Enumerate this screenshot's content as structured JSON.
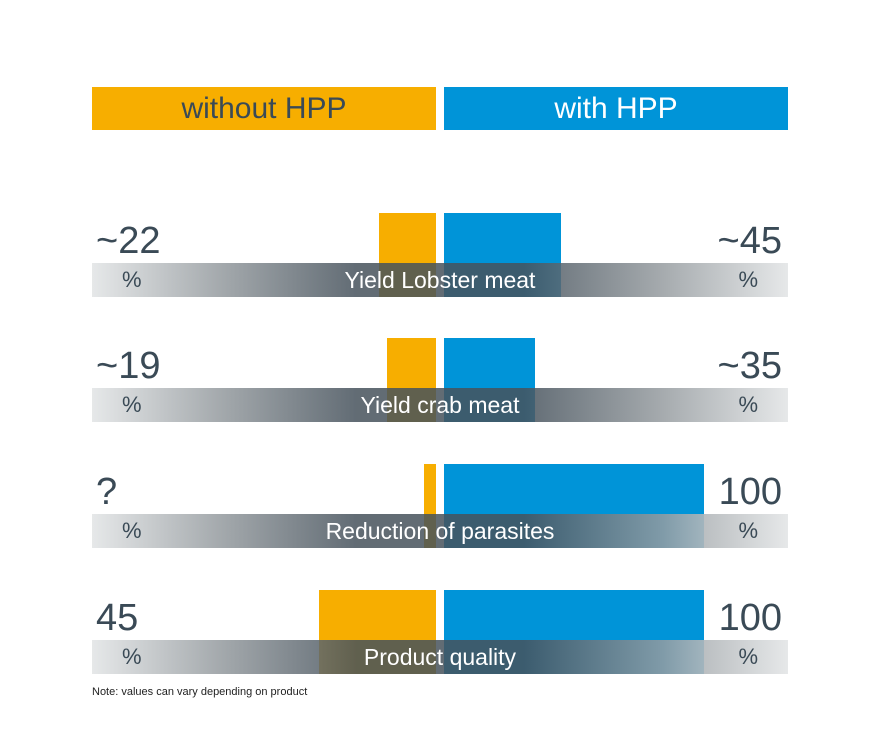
{
  "header": {
    "left_label": "without HPP",
    "right_label": "with HPP"
  },
  "colors": {
    "without": "#f7ae00",
    "with": "#0094d8",
    "text": "#3a4a56"
  },
  "chart_data": {
    "type": "bar",
    "categories": [
      "Yield Lobster meat",
      "Yield crab meat",
      "Reduction of parasites",
      "Product quality"
    ],
    "series": [
      {
        "name": "without HPP",
        "values": [
          22,
          19,
          null,
          45
        ],
        "labels": [
          "~22",
          "~19",
          "?",
          "45"
        ]
      },
      {
        "name": "with HPP",
        "values": [
          45,
          35,
          100,
          100
        ],
        "labels": [
          "~45",
          "~35",
          "100",
          "100"
        ]
      }
    ],
    "unit": "%",
    "ylim": [
      0,
      100
    ]
  },
  "note": "Note: values can vary depending on product"
}
